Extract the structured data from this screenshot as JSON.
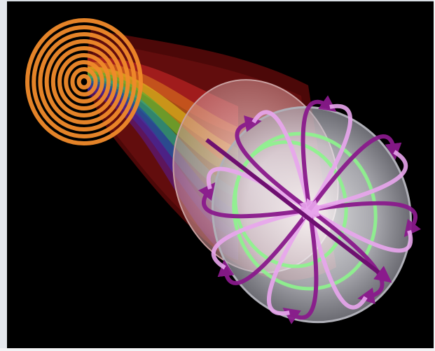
{
  "image": {
    "subject": "abstract-field-illustration",
    "background_color": "#000000",
    "palette": {
      "spiral": "#f08a2a",
      "tube_outer": "#7a1010",
      "disc": "#e8e8ee",
      "arrow_dark": "#8a1a8c",
      "arrow_light": "#e9a6ee",
      "ring_green": "#8df58d"
    },
    "rainbow": [
      "#d42a2a",
      "#e0801e",
      "#e6d21e",
      "#3ab43a",
      "#1e9ca8",
      "#1e3cb4",
      "#5a1e9c"
    ]
  }
}
